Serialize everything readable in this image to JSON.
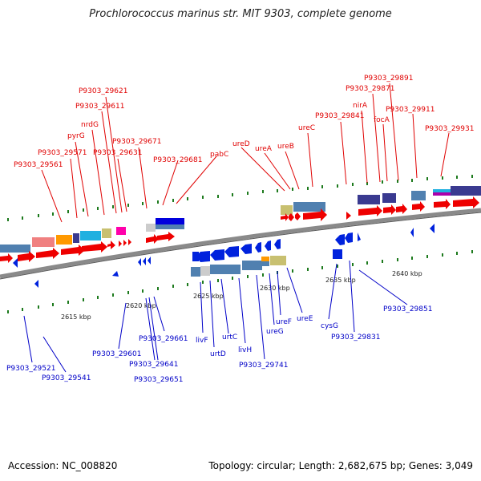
{
  "title": "Prochlorococcus marinus str. MIT 9303, complete genome",
  "footer": {
    "accession": "Accession: NC_008820",
    "summary": "Topology: circular; Length: 2,682,675 bp; Genes: 3,049"
  },
  "colors": {
    "forward_gene": "#ee0000",
    "reverse_gene": "#0022dd",
    "forward_label": "#e00000",
    "reverse_label": "#0000c8",
    "backbone": "#8a8a8a",
    "tick": "#1d7a1d"
  },
  "scale_labels": [
    "2615 kbp",
    "2620 kbp",
    "2625 kbp",
    "2630 kbp",
    "2635 kbp",
    "2640 kbp"
  ],
  "forward_labels": [
    "P9303_29561",
    "P9303_29571",
    "pyrG",
    "nrdG",
    "P9303_29611",
    "P9303_29621",
    "P9303_29631",
    "P9303_29671",
    "P9303_29681",
    "pabC",
    "ureD",
    "ureA",
    "ureB",
    "ureC",
    "P9303_29841",
    "nirA",
    "P9303_29871",
    "focA",
    "P9303_29891",
    "P9303_29911",
    "P9303_29931"
  ],
  "reverse_labels": [
    "P9303_29521",
    "P9303_29541",
    "P9303_29601",
    "P9303_29641",
    "P9303_29651",
    "P9303_29661",
    "livF",
    "urtD",
    "urtC",
    "livH",
    "P9303_29741",
    "ureG",
    "ureF",
    "ureE",
    "cysG",
    "P9303_29831",
    "P9303_29851"
  ]
}
